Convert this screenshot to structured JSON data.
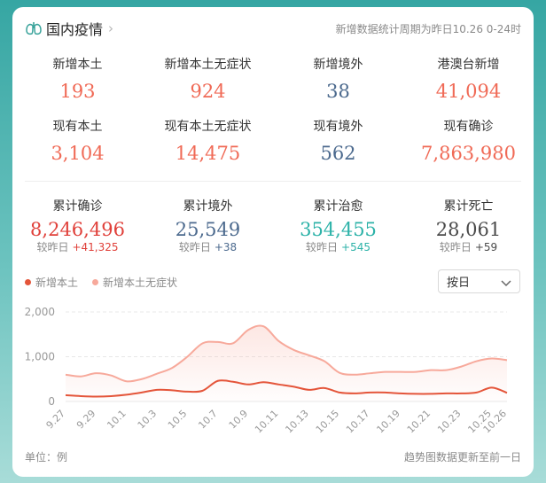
{
  "header": {
    "title": "国内疫情",
    "note": "新增数据统计周期为昨日10.26 0-24时"
  },
  "stats_row1": [
    {
      "label": "新增本土",
      "value": "193",
      "color": "#f06a56"
    },
    {
      "label": "新增本土无症状",
      "value": "924",
      "color": "#f06a56"
    },
    {
      "label": "新增境外",
      "value": "38",
      "color": "#4c6a8e"
    },
    {
      "label": "港澳台新增",
      "value": "41,094",
      "color": "#f06a56"
    }
  ],
  "stats_row2": [
    {
      "label": "现有本土",
      "value": "3,104",
      "color": "#f06a56"
    },
    {
      "label": "现有本土无症状",
      "value": "14,475",
      "color": "#f06a56"
    },
    {
      "label": "现有境外",
      "value": "562",
      "color": "#4c6a8e"
    },
    {
      "label": "现有确诊",
      "value": "7,863,980",
      "color": "#f06a56"
    }
  ],
  "stats_row3": [
    {
      "label": "累计确诊",
      "value": "8,246,496",
      "change_label": "较昨日",
      "change": "+41,325",
      "color": "#e0403a"
    },
    {
      "label": "累计境外",
      "value": "25,549",
      "change_label": "较昨日",
      "change": "+38",
      "color": "#4c6a8e"
    },
    {
      "label": "累计治愈",
      "value": "354,455",
      "change_label": "较昨日",
      "change": "+545",
      "color": "#2cb2a8"
    },
    {
      "label": "累计死亡",
      "value": "28,061",
      "change_label": "较昨日",
      "change": "+59",
      "color": "#4a4a4a"
    }
  ],
  "legend": [
    {
      "name": "新增本土",
      "color": "#e4553a"
    },
    {
      "name": "新增本土无症状",
      "color": "#f7a99b"
    }
  ],
  "select": {
    "value": "按日"
  },
  "chart_data": {
    "type": "area",
    "x": [
      "9.27",
      "9.28",
      "9.29",
      "9.30",
      "10.1",
      "10.2",
      "10.3",
      "10.4",
      "10.5",
      "10.6",
      "10.7",
      "10.8",
      "10.9",
      "10.10",
      "10.11",
      "10.12",
      "10.13",
      "10.14",
      "10.15",
      "10.16",
      "10.17",
      "10.18",
      "10.19",
      "10.20",
      "10.21",
      "10.22",
      "10.23",
      "10.24",
      "10.25",
      "10.26"
    ],
    "tick_labels": [
      "9.27",
      "9.29",
      "10.1",
      "10.3",
      "10.5",
      "10.7",
      "10.9",
      "10.11",
      "10.13",
      "10.15",
      "10.17",
      "10.19",
      "10.21",
      "10.23",
      "10.25",
      "10.26"
    ],
    "yticks": [
      0,
      1000,
      2000
    ],
    "ytick_labels": [
      "0",
      "1,000",
      "2,000"
    ],
    "ylim": [
      0,
      2000
    ],
    "series": [
      {
        "name": "新增本土",
        "color": "#e4553a",
        "values": [
          140,
          120,
          110,
          120,
          150,
          200,
          260,
          250,
          220,
          240,
          460,
          440,
          380,
          430,
          380,
          330,
          260,
          300,
          200,
          180,
          200,
          200,
          180,
          170,
          170,
          180,
          180,
          200,
          310,
          193
        ]
      },
      {
        "name": "新增本土无症状",
        "color": "#f7a99b",
        "values": [
          600,
          560,
          630,
          580,
          450,
          500,
          620,
          750,
          1000,
          1300,
          1330,
          1300,
          1600,
          1680,
          1350,
          1150,
          1030,
          900,
          640,
          600,
          630,
          660,
          660,
          660,
          700,
          700,
          780,
          900,
          960,
          924
        ]
      }
    ]
  },
  "footer": {
    "unit": "单位：例",
    "note": "趋势图数据更新至前一日"
  }
}
